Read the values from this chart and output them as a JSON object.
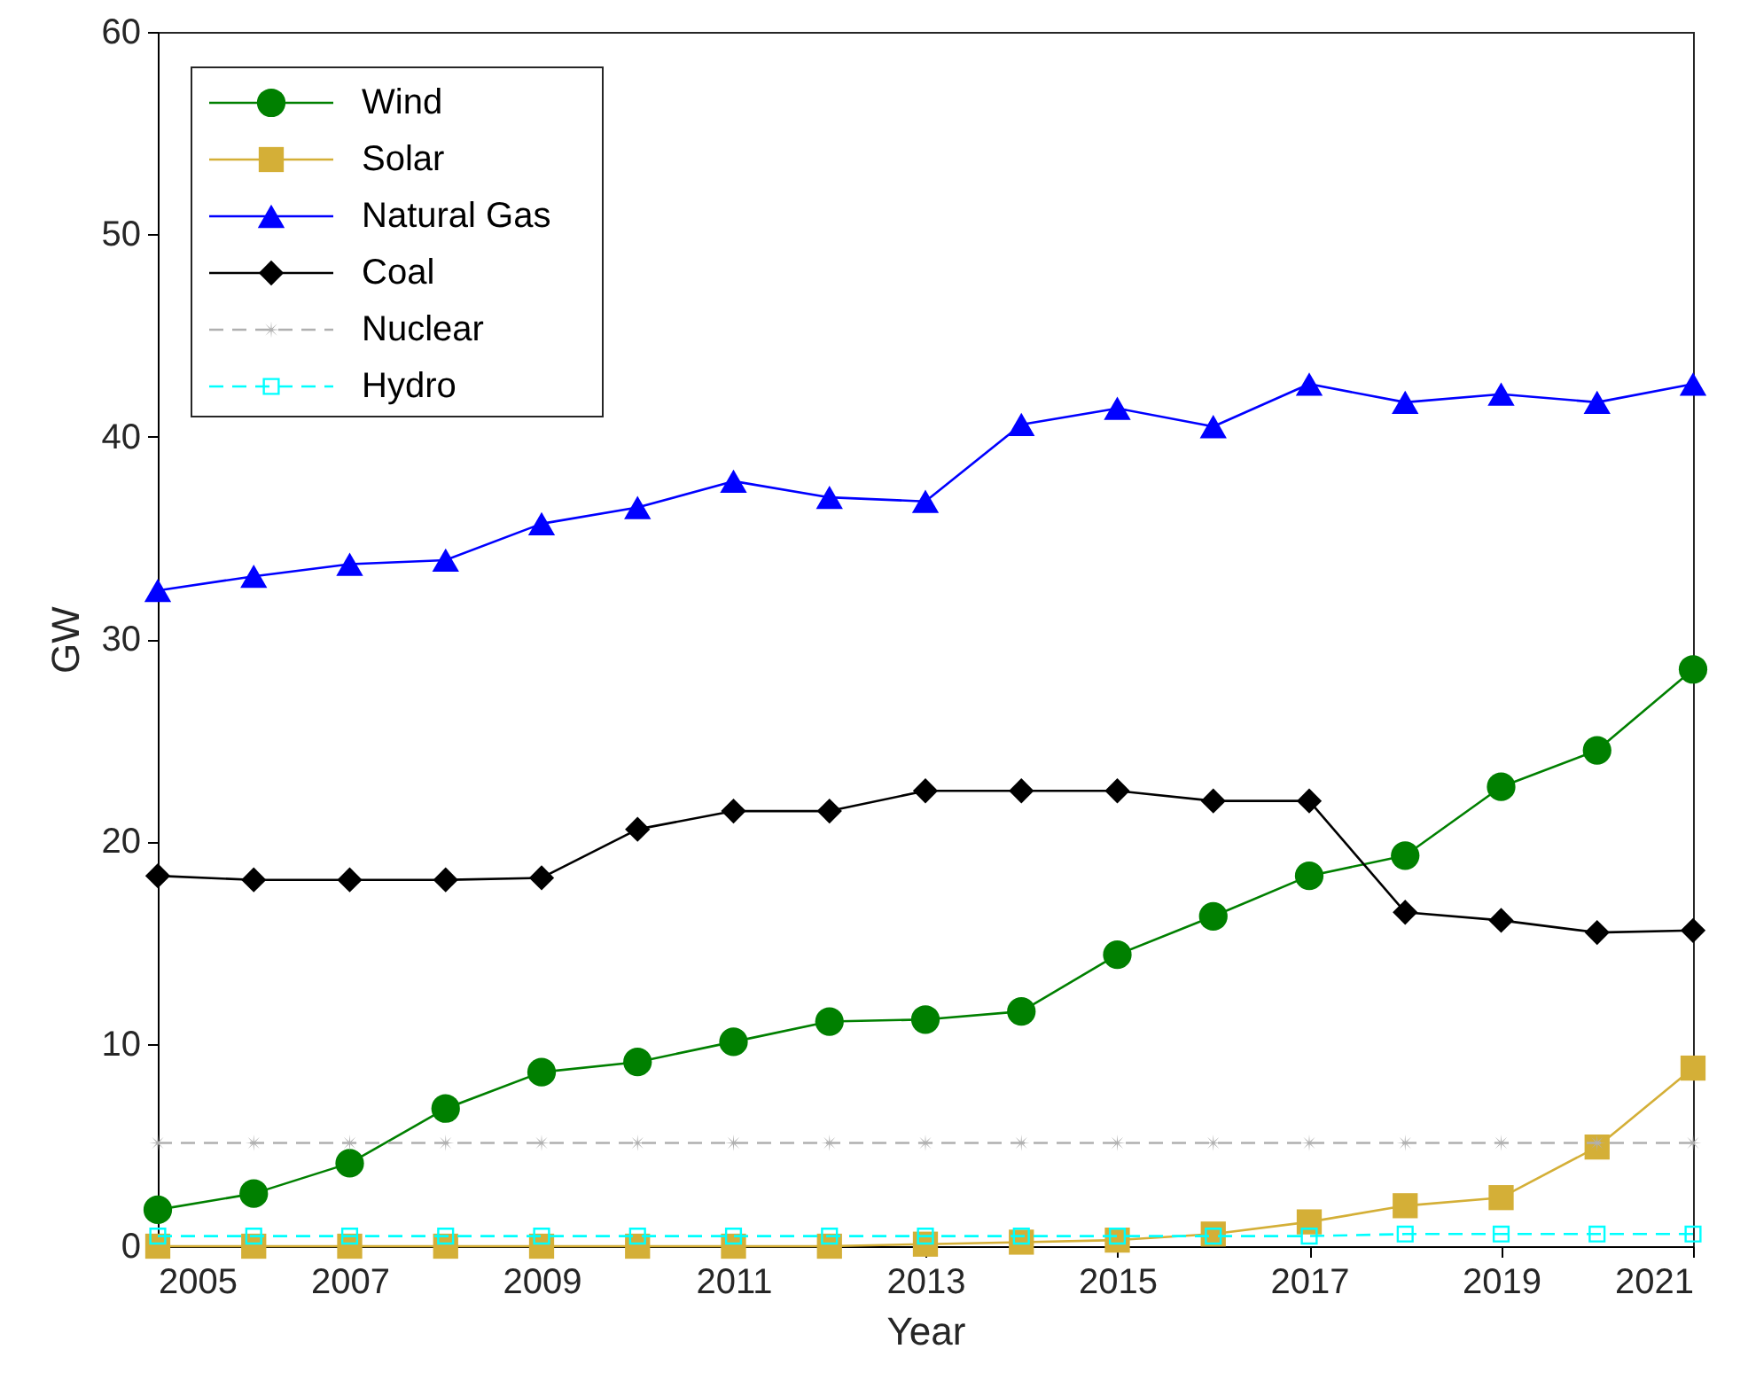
{
  "chart_data": {
    "type": "line",
    "xlabel": "Year",
    "ylabel": "GW",
    "x": [
      2005,
      2006,
      2007,
      2008,
      2009,
      2010,
      2011,
      2012,
      2013,
      2014,
      2015,
      2016,
      2017,
      2018,
      2019,
      2020,
      2021
    ],
    "series": [
      {
        "name": "Wind",
        "color": "#008000",
        "marker": "circle",
        "line_style": "solid",
        "values": [
          1.8,
          2.6,
          4.1,
          6.8,
          8.6,
          9.1,
          10.1,
          11.1,
          11.2,
          11.6,
          14.4,
          16.3,
          18.3,
          19.3,
          22.7,
          24.5,
          28.5
        ]
      },
      {
        "name": "Solar",
        "color": "#d4af37",
        "marker": "square",
        "line_style": "solid",
        "values": [
          0.0,
          0.0,
          0.0,
          0.0,
          0.0,
          0.0,
          0.0,
          0.0,
          0.1,
          0.2,
          0.3,
          0.6,
          1.2,
          2.0,
          2.4,
          4.9,
          8.8
        ]
      },
      {
        "name": "Natural Gas",
        "color": "#0000ff",
        "marker": "triangle",
        "line_style": "solid",
        "values": [
          32.4,
          33.1,
          33.7,
          33.9,
          35.7,
          36.5,
          37.8,
          37.0,
          36.8,
          40.6,
          41.4,
          40.5,
          42.6,
          41.7,
          42.1,
          41.7,
          42.6
        ]
      },
      {
        "name": "Coal",
        "color": "#000000",
        "marker": "diamond",
        "line_style": "solid",
        "values": [
          18.3,
          18.1,
          18.1,
          18.1,
          18.2,
          20.6,
          21.5,
          21.5,
          22.5,
          22.5,
          22.5,
          22.0,
          22.0,
          16.5,
          16.1,
          15.5,
          15.6
        ]
      },
      {
        "name": "Nuclear",
        "color": "#b0b0b0",
        "marker": "star",
        "line_style": "dashed",
        "values": [
          5.1,
          5.1,
          5.1,
          5.1,
          5.1,
          5.1,
          5.1,
          5.1,
          5.1,
          5.1,
          5.1,
          5.1,
          5.1,
          5.1,
          5.1,
          5.1,
          5.1
        ]
      },
      {
        "name": "Hydro",
        "color": "#00ffff",
        "marker": "square",
        "line_style": "dashed",
        "values": [
          0.5,
          0.5,
          0.5,
          0.5,
          0.5,
          0.5,
          0.5,
          0.5,
          0.5,
          0.5,
          0.5,
          0.5,
          0.5,
          0.6,
          0.6,
          0.6,
          0.6
        ]
      }
    ],
    "xlim": [
      2005,
      2021
    ],
    "xticks": [
      2005,
      2007,
      2009,
      2011,
      2013,
      2015,
      2017,
      2019,
      2021
    ],
    "ylim": [
      0,
      60
    ],
    "yticks": [
      0,
      10,
      20,
      30,
      40,
      50,
      60
    ],
    "grid": false,
    "legend": "top left"
  }
}
